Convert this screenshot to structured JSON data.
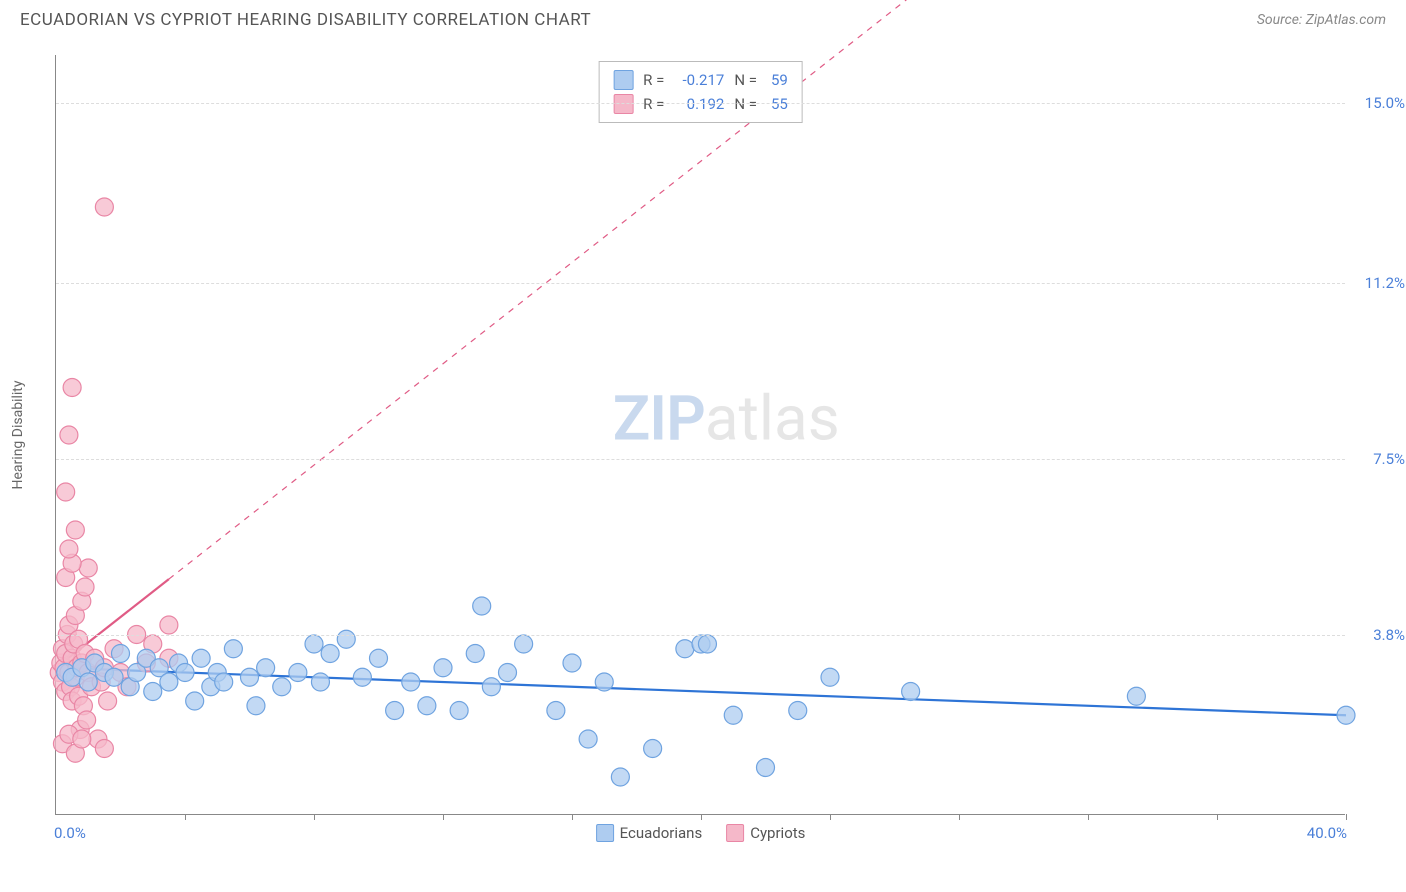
{
  "header": {
    "title": "ECUADORIAN VS CYPRIOT HEARING DISABILITY CORRELATION CHART",
    "source": "Source: ZipAtlas.com"
  },
  "watermark": {
    "zip": "ZIP",
    "atlas": "atlas"
  },
  "chart": {
    "type": "scatter",
    "ylabel": "Hearing Disability",
    "xlim": [
      0,
      40
    ],
    "ylim": [
      0,
      16
    ],
    "x_tick_positions": [
      4,
      8,
      12,
      16,
      20,
      24,
      28,
      32,
      36,
      40
    ],
    "y_gridlines": [
      3.8,
      7.5,
      11.2,
      15.0
    ],
    "y_tick_labels": [
      "3.8%",
      "7.5%",
      "11.2%",
      "15.0%"
    ],
    "x_min_label": "0.0%",
    "x_max_label": "40.0%",
    "axis_tick_color": "#4a7fd8",
    "grid_color": "#dddddd",
    "axis_color": "#888888",
    "background_color": "#ffffff",
    "marker_radius": 9,
    "marker_stroke_width": 1.2,
    "trend_solid_width": 2.2,
    "trend_dash_width": 1.2,
    "trend_dash_pattern": "6,6"
  },
  "series": {
    "ecuadorians": {
      "label": "Ecuadorians",
      "fill": "#aeccf0",
      "stroke": "#6fa3e0",
      "trend_color": "#2e74d6",
      "R": "-0.217",
      "N": "59",
      "trend_line": {
        "x1": 0,
        "y1": 3.1,
        "x2": 40,
        "y2": 2.1
      },
      "trend_solid_xmax": 40,
      "points": [
        [
          0.3,
          3.0
        ],
        [
          0.5,
          2.9
        ],
        [
          0.8,
          3.1
        ],
        [
          1.0,
          2.8
        ],
        [
          1.2,
          3.2
        ],
        [
          1.5,
          3.0
        ],
        [
          1.8,
          2.9
        ],
        [
          2.0,
          3.4
        ],
        [
          2.3,
          2.7
        ],
        [
          2.5,
          3.0
        ],
        [
          2.8,
          3.3
        ],
        [
          3.0,
          2.6
        ],
        [
          3.2,
          3.1
        ],
        [
          3.5,
          2.8
        ],
        [
          3.8,
          3.2
        ],
        [
          4.0,
          3.0
        ],
        [
          4.3,
          2.4
        ],
        [
          4.5,
          3.3
        ],
        [
          4.8,
          2.7
        ],
        [
          5.0,
          3.0
        ],
        [
          5.2,
          2.8
        ],
        [
          5.5,
          3.5
        ],
        [
          6.0,
          2.9
        ],
        [
          6.2,
          2.3
        ],
        [
          6.5,
          3.1
        ],
        [
          7.0,
          2.7
        ],
        [
          7.5,
          3.0
        ],
        [
          8.0,
          3.6
        ],
        [
          8.2,
          2.8
        ],
        [
          8.5,
          3.4
        ],
        [
          9.0,
          3.7
        ],
        [
          9.5,
          2.9
        ],
        [
          10.0,
          3.3
        ],
        [
          10.5,
          2.2
        ],
        [
          11.0,
          2.8
        ],
        [
          11.5,
          2.3
        ],
        [
          12.0,
          3.1
        ],
        [
          12.5,
          2.2
        ],
        [
          13.0,
          3.4
        ],
        [
          13.2,
          4.4
        ],
        [
          13.5,
          2.7
        ],
        [
          14.0,
          3.0
        ],
        [
          14.5,
          3.6
        ],
        [
          15.5,
          2.2
        ],
        [
          16.0,
          3.2
        ],
        [
          16.5,
          1.6
        ],
        [
          17.0,
          2.8
        ],
        [
          17.5,
          0.8
        ],
        [
          18.5,
          1.4
        ],
        [
          19.5,
          3.5
        ],
        [
          20.0,
          3.6
        ],
        [
          20.2,
          3.6
        ],
        [
          21.0,
          2.1
        ],
        [
          22.0,
          1.0
        ],
        [
          23.0,
          2.2
        ],
        [
          24.0,
          2.9
        ],
        [
          26.5,
          2.6
        ],
        [
          33.5,
          2.5
        ],
        [
          40.0,
          2.1
        ]
      ]
    },
    "cypriots": {
      "label": "Cypriots",
      "fill": "#f5b8c9",
      "stroke": "#e986a5",
      "trend_color": "#e05b85",
      "R": "0.192",
      "N": "55",
      "trend_line": {
        "x1": 0,
        "y1": 3.1,
        "x2": 27,
        "y2": 17.5
      },
      "trend_solid_xmax": 3.5,
      "points": [
        [
          0.1,
          3.0
        ],
        [
          0.15,
          3.2
        ],
        [
          0.2,
          2.8
        ],
        [
          0.2,
          3.5
        ],
        [
          0.25,
          3.1
        ],
        [
          0.3,
          3.4
        ],
        [
          0.3,
          2.6
        ],
        [
          0.35,
          3.8
        ],
        [
          0.4,
          3.0
        ],
        [
          0.4,
          4.0
        ],
        [
          0.45,
          2.7
        ],
        [
          0.5,
          3.3
        ],
        [
          0.5,
          2.4
        ],
        [
          0.55,
          3.6
        ],
        [
          0.6,
          2.9
        ],
        [
          0.6,
          4.2
        ],
        [
          0.65,
          3.1
        ],
        [
          0.7,
          2.5
        ],
        [
          0.7,
          3.7
        ],
        [
          0.75,
          1.8
        ],
        [
          0.8,
          3.2
        ],
        [
          0.8,
          4.5
        ],
        [
          0.85,
          2.3
        ],
        [
          0.9,
          3.4
        ],
        [
          0.9,
          4.8
        ],
        [
          0.95,
          2.0
        ],
        [
          1.0,
          3.0
        ],
        [
          1.0,
          5.2
        ],
        [
          0.3,
          5.0
        ],
        [
          0.5,
          5.3
        ],
        [
          0.4,
          5.6
        ],
        [
          0.6,
          6.0
        ],
        [
          1.1,
          2.7
        ],
        [
          1.2,
          3.3
        ],
        [
          1.3,
          1.6
        ],
        [
          1.4,
          2.8
        ],
        [
          1.5,
          3.1
        ],
        [
          1.5,
          1.4
        ],
        [
          1.6,
          2.4
        ],
        [
          1.8,
          3.5
        ],
        [
          2.0,
          3.0
        ],
        [
          2.2,
          2.7
        ],
        [
          2.5,
          3.8
        ],
        [
          2.8,
          3.2
        ],
        [
          3.0,
          3.6
        ],
        [
          3.5,
          4.0
        ],
        [
          3.5,
          3.3
        ],
        [
          0.3,
          6.8
        ],
        [
          0.4,
          8.0
        ],
        [
          0.5,
          9.0
        ],
        [
          1.5,
          12.8
        ],
        [
          0.2,
          1.5
        ],
        [
          0.4,
          1.7
        ],
        [
          0.6,
          1.3
        ],
        [
          0.8,
          1.6
        ]
      ]
    }
  },
  "stats_box": {
    "r_label": "R =",
    "n_label": "N ="
  },
  "bottom_legend": {
    "items": [
      "ecuadorians",
      "cypriots"
    ]
  }
}
